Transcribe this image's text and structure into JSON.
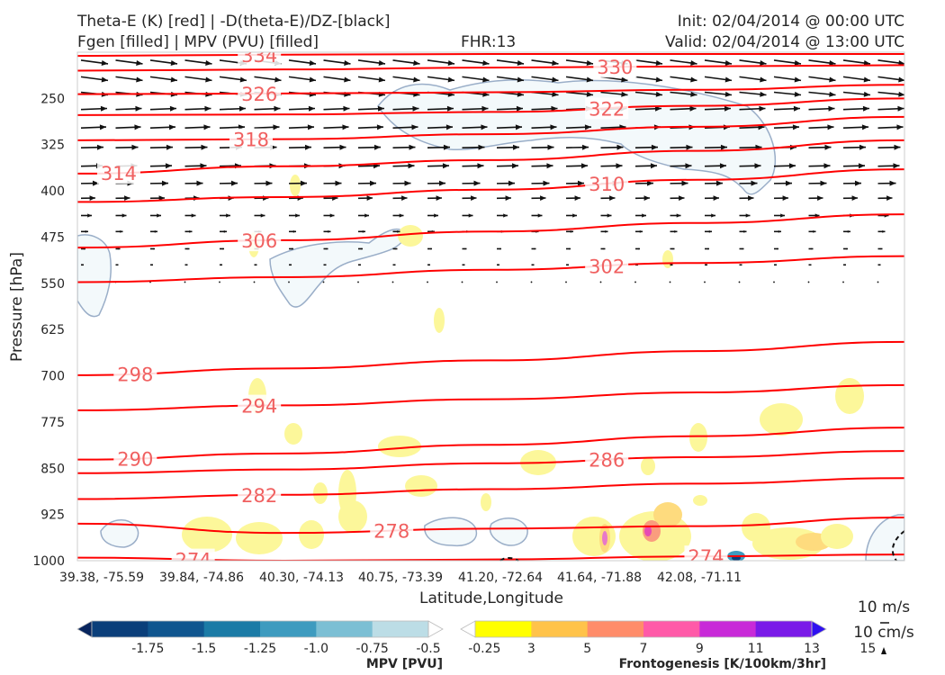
{
  "header": {
    "title_line1": "Theta-E (K) [red] | -D(theta-E)/DZ-[black]",
    "title_line2": "Fgen [filled] | MPV (PVU) [filled]",
    "fhr": "FHR:13",
    "init": "Init: 02/04/2014 @ 00:00 UTC",
    "valid": "Valid: 02/04/2014 @ 13:00 UTC"
  },
  "chart_data": {
    "type": "cross-section",
    "xlabel": "Latitude,Longitude",
    "ylabel": "Pressure [hPa]",
    "ylim": [
      1000,
      175
    ],
    "x_tick_labels": [
      "39.38, -75.59",
      "39.84, -74.86",
      "40.30, -74.13",
      "40.75, -73.39",
      "41.20, -72.64",
      "41.64, -71.88",
      "42.08, -71.11"
    ],
    "y_ticks": [
      250,
      325,
      400,
      475,
      550,
      625,
      700,
      775,
      850,
      925,
      1000
    ],
    "theta_e_contours": [
      {
        "level": 334,
        "label": "334",
        "y": [
          181,
          179,
          178,
          178,
          178
        ]
      },
      {
        "level": 330,
        "label": "330",
        "y": [
          205,
          203,
          200,
          198,
          196
        ]
      },
      {
        "level": 326,
        "label": "326",
        "y": [
          243,
          242,
          240,
          236,
          228
        ]
      },
      {
        "level": 322,
        "label": "322",
        "y": [
          277,
          276,
          272,
          262,
          250
        ]
      },
      {
        "level": 318,
        "label": "318",
        "y": [
          318,
          316,
          308,
          296,
          280
        ]
      },
      {
        "level": 314,
        "label": "314",
        "y": [
          372,
          360,
          350,
          335,
          318
        ]
      },
      {
        "level": 310,
        "label": "310",
        "y": [
          418,
          410,
          398,
          382,
          365
        ]
      },
      {
        "level": 306,
        "label": "306",
        "y": [
          492,
          480,
          466,
          452,
          438
        ]
      },
      {
        "level": 302,
        "label": "302",
        "y": [
          548,
          540,
          528,
          517,
          506
        ]
      },
      {
        "level": 298,
        "label": "298",
        "y": [
          699,
          688,
          675,
          660,
          645
        ]
      },
      {
        "level": 294,
        "label": "294",
        "y": [
          756,
          748,
          738,
          727,
          715
        ]
      },
      {
        "level": 290,
        "label": "290",
        "y": [
          836,
          826,
          812,
          798,
          784
        ]
      },
      {
        "level": 286,
        "label": "286",
        "y": [
          858,
          852,
          842,
          832,
          822
        ]
      },
      {
        "level": 282,
        "label": "282",
        "y": [
          900,
          893,
          884,
          875,
          866
        ]
      },
      {
        "level": 278,
        "label": "278",
        "y": [
          940,
          955,
          948,
          944,
          930
        ]
      },
      {
        "level": 274,
        "label": "274",
        "y": [
          995,
          1000,
          998,
          993,
          990
        ]
      }
    ],
    "contour_labels": [
      {
        "text": "334",
        "x": 0.22,
        "level": 334
      },
      {
        "text": "330",
        "x": 0.65,
        "level": 330
      },
      {
        "text": "326",
        "x": 0.22,
        "level": 326
      },
      {
        "text": "322",
        "x": 0.64,
        "level": 322
      },
      {
        "text": "318",
        "x": 0.21,
        "level": 318
      },
      {
        "text": "314",
        "x": 0.05,
        "level": 314
      },
      {
        "text": "310",
        "x": 0.64,
        "level": 310
      },
      {
        "text": "306",
        "x": 0.22,
        "level": 306
      },
      {
        "text": "302",
        "x": 0.64,
        "level": 302
      },
      {
        "text": "298",
        "x": 0.07,
        "level": 298
      },
      {
        "text": "294",
        "x": 0.22,
        "level": 294
      },
      {
        "text": "290",
        "x": 0.07,
        "level": 290
      },
      {
        "text": "286",
        "x": 0.64,
        "level": 286
      },
      {
        "text": "282",
        "x": 0.22,
        "level": 282
      },
      {
        "text": "278",
        "x": 0.38,
        "level": 278
      },
      {
        "text": "274",
        "x": 0.14,
        "level": 274
      },
      {
        "text": "274",
        "x": 0.76,
        "level": 274
      }
    ],
    "mpv_colorbar": {
      "label": "MPV [PVU]",
      "ticks": [
        "-1.75",
        "-1.5",
        "-1.25",
        "-1.0",
        "-0.75",
        "-0.5",
        "-0.25"
      ],
      "colors": [
        "#08255e",
        "#0b3f7a",
        "#10568f",
        "#1b7ba6",
        "#3e9bbf",
        "#7cbfd4",
        "#bcdde6",
        "#ffffff"
      ]
    },
    "fgen_colorbar": {
      "label": "Frontogenesis [K/100km/3hr]",
      "ticks": [
        "3",
        "5",
        "7",
        "9",
        "11",
        "13",
        "15"
      ],
      "colors": [
        "#ffffff",
        "#ffff00",
        "#ffc34a",
        "#ff8c6a",
        "#ff5aa8",
        "#c82ad8",
        "#7a1ae8",
        "#2f10f0"
      ]
    },
    "wind_scale": {
      "horizontal": "10 m/s",
      "vertical": "10 cm/s"
    },
    "colors": {
      "theta_e": "#ff0000",
      "label_text": "#f06060",
      "vectors": "#111111"
    }
  }
}
